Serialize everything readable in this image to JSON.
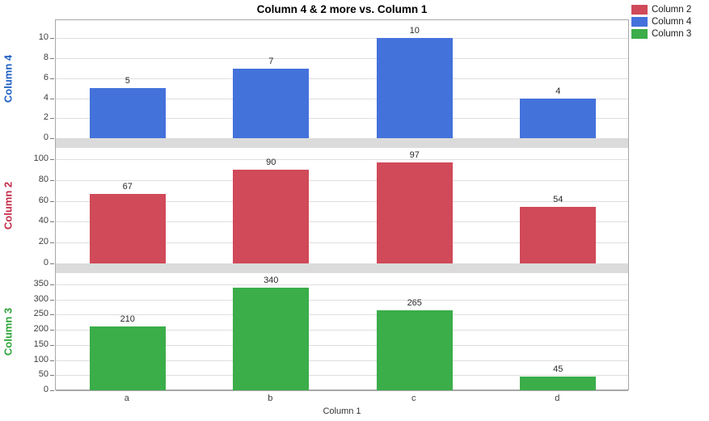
{
  "chart_data": {
    "type": "bar",
    "layout": "three stacked bar panels sharing one categorical x axis",
    "title": "Column 4 & 2 more vs. Column 1",
    "xlabel": "Column 1",
    "categories": [
      "a",
      "b",
      "c",
      "d"
    ],
    "series": [
      {
        "name": "Column 4",
        "values": [
          5,
          7,
          10,
          4
        ],
        "color": "#4472db",
        "axis_title_color": "#1e5fc4",
        "ticks": [
          0,
          2,
          4,
          6,
          8,
          10
        ],
        "ylim": [
          0,
          11.9
        ]
      },
      {
        "name": "Column 2",
        "values": [
          67,
          90,
          97,
          54
        ],
        "color": "#d04a59",
        "axis_title_color": "#c42b47",
        "ticks": [
          0,
          20,
          40,
          60,
          80,
          100
        ],
        "ylim": [
          0,
          111
        ]
      },
      {
        "name": "Column 3",
        "values": [
          210,
          340,
          265,
          45
        ],
        "color": "#3bad49",
        "axis_title_color": "#2da439",
        "ticks": [
          0,
          50,
          100,
          150,
          200,
          250,
          300,
          350
        ],
        "ylim": [
          0,
          387
        ]
      }
    ],
    "legend": {
      "position": "top-right",
      "entries": [
        {
          "label": "Column 2",
          "color": "#d04a59"
        },
        {
          "label": "Column 4",
          "color": "#4472db"
        },
        {
          "label": "Column 3",
          "color": "#3bad49"
        }
      ]
    },
    "grid": true,
    "bar_labels": true
  }
}
